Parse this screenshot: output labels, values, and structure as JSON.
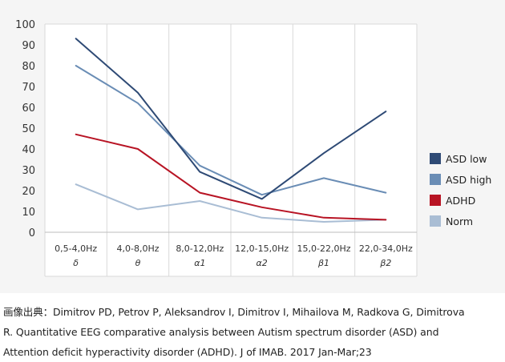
{
  "chart_data": {
    "type": "line",
    "categories": [
      "0,5-4,0Hz",
      "4,0-8,0Hz",
      "8,0-12,0Hz",
      "12,0-15,0Hz",
      "15,0-22,0Hz",
      "22,0-34,0Hz"
    ],
    "category_symbols": [
      "δ",
      "θ",
      "α1",
      "α2",
      "β1",
      "β2"
    ],
    "ylim": [
      0,
      100
    ],
    "yticks": [
      0,
      10,
      20,
      30,
      40,
      50,
      60,
      70,
      80,
      90,
      100
    ],
    "grid": "vertical lines between categories",
    "legend_position": "right",
    "series": [
      {
        "name": "ASD low",
        "color": "#2e4a75",
        "values": [
          93,
          67,
          29,
          16,
          38,
          58
        ]
      },
      {
        "name": "ASD high",
        "color": "#6a8db5",
        "values": [
          80,
          62,
          32,
          18,
          26,
          19
        ]
      },
      {
        "name": "ADHD",
        "color": "#b81424",
        "values": [
          47,
          40,
          19,
          12,
          7,
          6
        ]
      },
      {
        "name": "Norm",
        "color": "#a9bdd4",
        "values": [
          23,
          11,
          15,
          7,
          5,
          6
        ]
      }
    ]
  },
  "caption": {
    "line1": "画像出典：Dimitrov PD, Petrov P, Aleksandrov I, Dimitrov I, Mihailova M, Radkova G, Dimitrova",
    "line2": "R. Quantitative EEG comparative analysis between Autism spectrum disorder (ASD) and",
    "line3": "Attention deficit hyperactivity disorder (ADHD). J of IMAB. 2017 Jan-Mar;23"
  }
}
